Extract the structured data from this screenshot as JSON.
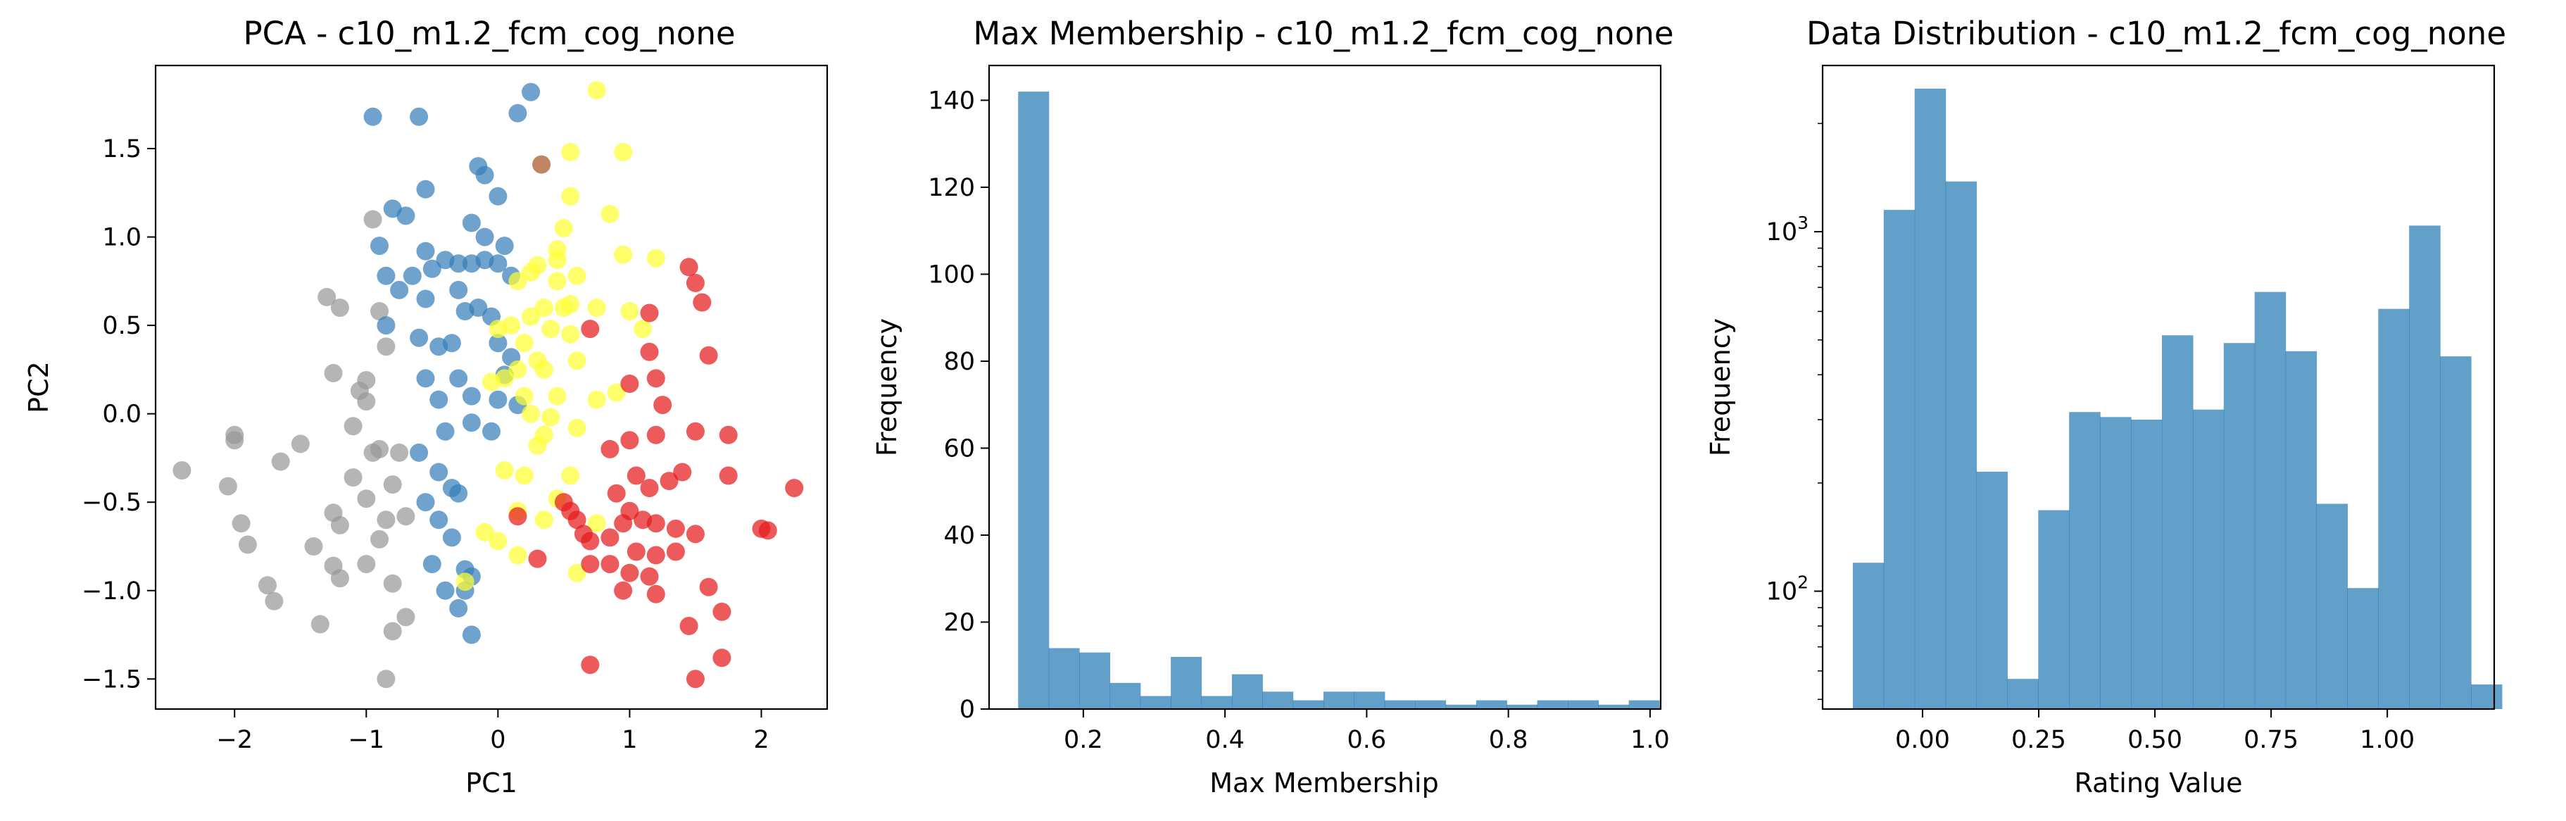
{
  "chart_data": [
    {
      "type": "scatter",
      "title": "PCA - c10_m1.2_fcm_cog_none",
      "xlabel": "PC1",
      "ylabel": "PC2",
      "xlim": [
        -2.6,
        2.5
      ],
      "ylim": [
        -1.67,
        1.97
      ],
      "xticks": [
        -2,
        -1,
        0,
        1,
        2
      ],
      "xtick_labels": [
        "−2",
        "−1",
        "0",
        "1",
        "2"
      ],
      "yticks": [
        -1.5,
        -1.0,
        -0.5,
        0.0,
        0.5,
        1.0,
        1.5
      ],
      "ytick_labels": [
        "−1.5",
        "−1.0",
        "−0.5",
        "0.0",
        "0.5",
        "1.0",
        "1.5"
      ],
      "grid": false,
      "legend": "none",
      "series": [
        {
          "color": "#999999",
          "points": [
            [
              -2.4,
              -0.32
            ],
            [
              -2.0,
              -0.12
            ],
            [
              -2.0,
              -0.15
            ],
            [
              -2.05,
              -0.41
            ],
            [
              -1.95,
              -0.62
            ],
            [
              -1.9,
              -0.74
            ],
            [
              -1.75,
              -0.97
            ],
            [
              -1.7,
              -1.06
            ],
            [
              -1.65,
              -0.27
            ],
            [
              -1.5,
              -0.17
            ],
            [
              -1.4,
              -0.75
            ],
            [
              -1.35,
              -1.19
            ],
            [
              -1.25,
              -0.86
            ],
            [
              -1.2,
              -0.93
            ],
            [
              -1.25,
              -0.56
            ],
            [
              -1.2,
              -0.63
            ],
            [
              -1.3,
              0.66
            ],
            [
              -1.2,
              0.6
            ],
            [
              -1.1,
              -0.07
            ],
            [
              -1.05,
              0.13
            ],
            [
              -1.0,
              0.19
            ],
            [
              -1.1,
              -0.36
            ],
            [
              -1.0,
              -0.48
            ],
            [
              -0.95,
              -0.22
            ],
            [
              -1.0,
              -0.85
            ],
            [
              -0.9,
              -0.71
            ],
            [
              -0.85,
              -0.6
            ],
            [
              -0.95,
              1.1
            ],
            [
              -0.9,
              0.58
            ],
            [
              -0.85,
              0.38
            ],
            [
              -0.9,
              -0.2
            ],
            [
              -0.8,
              -0.4
            ],
            [
              -0.8,
              -0.96
            ],
            [
              -0.8,
              -1.23
            ],
            [
              -0.7,
              -1.15
            ],
            [
              -0.85,
              -1.5
            ],
            [
              -1.25,
              0.23
            ],
            [
              -1.0,
              0.07
            ],
            [
              -0.75,
              -0.22
            ],
            [
              -0.7,
              -0.58
            ]
          ]
        },
        {
          "color": "#377eb8",
          "points": [
            [
              -0.95,
              1.68
            ],
            [
              -0.6,
              1.68
            ],
            [
              -0.55,
              1.27
            ],
            [
              -0.8,
              1.16
            ],
            [
              -0.7,
              1.12
            ],
            [
              -0.9,
              0.95
            ],
            [
              -0.85,
              0.78
            ],
            [
              -0.75,
              0.7
            ],
            [
              -0.85,
              0.5
            ],
            [
              -0.65,
              0.78
            ],
            [
              -0.55,
              0.92
            ],
            [
              -0.5,
              0.82
            ],
            [
              -0.55,
              0.65
            ],
            [
              -0.4,
              0.87
            ],
            [
              -0.3,
              0.85
            ],
            [
              -0.2,
              0.85
            ],
            [
              -0.1,
              0.87
            ],
            [
              0.0,
              0.85
            ],
            [
              -0.3,
              0.7
            ],
            [
              -0.15,
              1.4
            ],
            [
              -0.1,
              1.35
            ],
            [
              -0.2,
              1.08
            ],
            [
              -0.1,
              1.0
            ],
            [
              0.0,
              1.23
            ],
            [
              0.05,
              0.95
            ],
            [
              -0.6,
              0.43
            ],
            [
              -0.45,
              0.38
            ],
            [
              -0.35,
              0.4
            ],
            [
              -0.25,
              0.58
            ],
            [
              -0.15,
              0.6
            ],
            [
              -0.05,
              0.55
            ],
            [
              -0.3,
              0.2
            ],
            [
              -0.2,
              0.1
            ],
            [
              -0.45,
              0.08
            ],
            [
              -0.55,
              0.2
            ],
            [
              -0.4,
              -0.1
            ],
            [
              -0.2,
              -0.05
            ],
            [
              -0.6,
              -0.22
            ],
            [
              -0.45,
              -0.33
            ],
            [
              -0.35,
              -0.42
            ],
            [
              -0.55,
              -0.5
            ],
            [
              -0.45,
              -0.6
            ],
            [
              -0.35,
              -0.7
            ],
            [
              -0.5,
              -0.85
            ],
            [
              -0.4,
              -1.0
            ],
            [
              -0.25,
              -0.88
            ],
            [
              -0.25,
              -1.0
            ],
            [
              -0.3,
              -1.1
            ],
            [
              -0.2,
              -1.25
            ],
            [
              -0.2,
              -0.92
            ],
            [
              0.0,
              0.4
            ],
            [
              0.1,
              0.32
            ],
            [
              0.0,
              0.08
            ],
            [
              0.15,
              0.05
            ],
            [
              0.15,
              1.7
            ],
            [
              0.25,
              1.82
            ],
            [
              0.1,
              0.78
            ],
            [
              0.05,
              0.22
            ],
            [
              -0.05,
              -0.1
            ],
            [
              -0.3,
              -0.45
            ]
          ]
        },
        {
          "color": "#ffff33",
          "points": [
            [
              0.75,
              1.83
            ],
            [
              0.55,
              1.48
            ],
            [
              0.95,
              1.48
            ],
            [
              0.55,
              1.23
            ],
            [
              0.85,
              1.13
            ],
            [
              0.95,
              0.9
            ],
            [
              1.2,
              0.88
            ],
            [
              0.5,
              1.05
            ],
            [
              0.45,
              0.93
            ],
            [
              0.45,
              0.87
            ],
            [
              0.3,
              0.84
            ],
            [
              0.25,
              0.8
            ],
            [
              0.15,
              0.75
            ],
            [
              0.45,
              0.75
            ],
            [
              0.6,
              0.78
            ],
            [
              0.5,
              0.6
            ],
            [
              0.55,
              0.62
            ],
            [
              0.35,
              0.6
            ],
            [
              0.25,
              0.55
            ],
            [
              0.75,
              0.6
            ],
            [
              1.0,
              0.58
            ],
            [
              0.0,
              0.48
            ],
            [
              0.1,
              0.5
            ],
            [
              0.4,
              0.48
            ],
            [
              0.55,
              0.45
            ],
            [
              0.2,
              0.4
            ],
            [
              0.3,
              0.3
            ],
            [
              0.15,
              0.25
            ],
            [
              0.35,
              0.25
            ],
            [
              0.6,
              0.3
            ],
            [
              0.05,
              0.2
            ],
            [
              -0.05,
              0.18
            ],
            [
              0.2,
              0.1
            ],
            [
              0.45,
              0.1
            ],
            [
              0.75,
              0.08
            ],
            [
              0.9,
              0.12
            ],
            [
              0.25,
              0.0
            ],
            [
              0.4,
              -0.02
            ],
            [
              0.35,
              -0.12
            ],
            [
              0.6,
              -0.08
            ],
            [
              0.05,
              -0.32
            ],
            [
              0.2,
              -0.35
            ],
            [
              0.55,
              -0.35
            ],
            [
              0.15,
              -0.55
            ],
            [
              0.35,
              -0.6
            ],
            [
              0.45,
              -0.48
            ],
            [
              0.75,
              -0.62
            ],
            [
              -0.1,
              -0.67
            ],
            [
              0.0,
              -0.72
            ],
            [
              0.6,
              -0.9
            ],
            [
              -0.25,
              -0.95
            ],
            [
              0.15,
              -0.8
            ],
            [
              1.1,
              0.48
            ],
            [
              0.3,
              -0.18
            ]
          ]
        },
        {
          "color": "#e41a1c",
          "points": [
            [
              1.45,
              0.83
            ],
            [
              1.5,
              0.74
            ],
            [
              1.55,
              0.63
            ],
            [
              1.6,
              0.33
            ],
            [
              1.15,
              0.57
            ],
            [
              0.7,
              0.48
            ],
            [
              1.15,
              0.35
            ],
            [
              1.2,
              0.2
            ],
            [
              1.0,
              0.17
            ],
            [
              1.25,
              0.05
            ],
            [
              1.2,
              -0.12
            ],
            [
              1.0,
              -0.15
            ],
            [
              0.85,
              -0.2
            ],
            [
              1.5,
              -0.1
            ],
            [
              1.75,
              -0.12
            ],
            [
              1.4,
              -0.33
            ],
            [
              1.75,
              -0.35
            ],
            [
              2.25,
              -0.42
            ],
            [
              1.05,
              -0.35
            ],
            [
              1.15,
              -0.42
            ],
            [
              1.3,
              -0.38
            ],
            [
              0.9,
              -0.45
            ],
            [
              1.0,
              -0.55
            ],
            [
              1.1,
              -0.6
            ],
            [
              1.2,
              -0.62
            ],
            [
              1.35,
              -0.65
            ],
            [
              1.5,
              -0.68
            ],
            [
              0.6,
              -0.6
            ],
            [
              0.65,
              -0.68
            ],
            [
              0.7,
              -0.72
            ],
            [
              0.85,
              -0.7
            ],
            [
              1.05,
              -0.78
            ],
            [
              1.2,
              -0.8
            ],
            [
              2.0,
              -0.65
            ],
            [
              2.05,
              -0.66
            ],
            [
              0.15,
              -0.58
            ],
            [
              0.3,
              -0.82
            ],
            [
              0.7,
              -0.85
            ],
            [
              0.85,
              -0.85
            ],
            [
              1.0,
              -0.9
            ],
            [
              0.95,
              -1.0
            ],
            [
              1.15,
              -0.92
            ],
            [
              1.2,
              -1.02
            ],
            [
              1.6,
              -0.98
            ],
            [
              1.45,
              -1.2
            ],
            [
              1.7,
              -1.12
            ],
            [
              1.7,
              -1.38
            ],
            [
              1.5,
              -1.5
            ],
            [
              0.7,
              -1.42
            ],
            [
              0.5,
              -0.5
            ],
            [
              0.55,
              -0.55
            ],
            [
              1.35,
              -0.78
            ],
            [
              0.95,
              -0.62
            ]
          ]
        },
        {
          "color": "#a65628",
          "points": [
            [
              0.33,
              1.41
            ]
          ]
        }
      ]
    },
    {
      "type": "bar",
      "title": "Max Membership - c10_m1.2_fcm_cog_none",
      "xlabel": "Max Membership",
      "ylabel": "Frequency",
      "xlim": [
        0.067,
        1.015
      ],
      "ylim": [
        0,
        148
      ],
      "xticks": [
        0.2,
        0.4,
        0.6,
        0.8,
        1.0
      ],
      "xtick_labels": [
        "0.2",
        "0.4",
        "0.6",
        "0.8",
        "1.0"
      ],
      "yticks": [
        0,
        20,
        40,
        60,
        80,
        100,
        120,
        140
      ],
      "ytick_labels": [
        "0",
        "20",
        "40",
        "60",
        "80",
        "100",
        "120",
        "140"
      ],
      "bin_start": 0.108,
      "bin_width": 0.0431,
      "values": [
        142,
        14,
        13,
        6,
        3,
        12,
        3,
        8,
        4,
        2,
        4,
        4,
        2,
        2,
        1,
        2,
        1,
        2,
        2,
        1,
        2
      ],
      "color": "#1f77b4",
      "alpha": 0.7,
      "grid": false
    },
    {
      "type": "bar",
      "title": "Data Distribution - c10_m1.2_fcm_cog_none",
      "xlabel": "Rating Value",
      "ylabel": "Frequency",
      "xlim": [
        -0.215,
        1.23
      ],
      "ylim": [
        47,
        2900
      ],
      "yscale": "log",
      "xticks": [
        0.0,
        0.25,
        0.5,
        0.75,
        1.0
      ],
      "xtick_labels": [
        "0.00",
        "0.25",
        "0.50",
        "0.75",
        "1.00"
      ],
      "yticks": [
        100,
        1000
      ],
      "ytick_labels": [
        {
          "base": "10",
          "exp": "2"
        },
        {
          "base": "10",
          "exp": "3"
        }
      ],
      "bin_start": -0.15,
      "bin_width": 0.0665,
      "values": [
        120,
        1150,
        2500,
        1380,
        215,
        57,
        168,
        315,
        305,
        300,
        515,
        320,
        490,
        680,
        465,
        175,
        102,
        610,
        1040,
        450,
        55
      ],
      "color": "#1f77b4",
      "alpha": 0.7,
      "grid": false
    }
  ]
}
